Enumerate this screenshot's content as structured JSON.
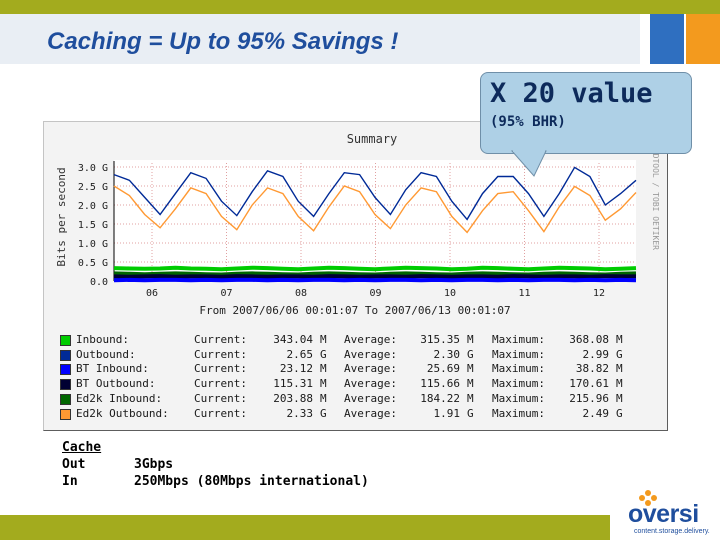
{
  "slide": {
    "title": "Caching = Up to 95% Savings !"
  },
  "callout": {
    "line1": "X 20 value",
    "line2": "(95% BHR)"
  },
  "info": {
    "header": "Cache",
    "out_label": "Out",
    "out_value": "3Gbps",
    "in_label": "In",
    "in_value": "250Mbps (80Mbps international)"
  },
  "logo": {
    "name": "oversi",
    "tagline": "content.storage.delivery."
  },
  "colors": {
    "accent_green": "#a3ab1e",
    "title_blue": "#1f4e9d",
    "square_orange": "#f39a1e",
    "square_blue": "#2f6fc0",
    "inbound": "#00cc00",
    "outbound": "#002a97",
    "bt_inbound": "#0000ff",
    "bt_outbound": "#000033",
    "ed2k_inbound": "#006600",
    "ed2k_outbound": "#ff9933"
  },
  "chart_data": {
    "type": "line",
    "title": "Summary",
    "ylabel": "Bits per second",
    "side_label": "RRDTOOL / TOBI OETIKER",
    "period": "From 2007/06/06 00:01:07 To 2007/06/13 00:01:07",
    "x_ticks": [
      "06",
      "07",
      "08",
      "09",
      "10",
      "11",
      "12"
    ],
    "y_ticks": [
      "0.0",
      "0.5 G",
      "1.0 G",
      "1.5 G",
      "2.0 G",
      "2.5 G",
      "3.0 G"
    ],
    "ylim": [
      0,
      3.0
    ],
    "y_unit": "Gbps",
    "series": [
      {
        "name": "Inbound:",
        "color": "#00cc00",
        "current": "343.04",
        "current_unit": "M",
        "average": "315.35",
        "average_unit": "M",
        "maximum": "368.08",
        "maximum_unit": "M",
        "values": [
          0.34,
          0.33,
          0.32,
          0.33,
          0.35,
          0.33,
          0.32,
          0.31,
          0.33,
          0.35,
          0.34,
          0.32,
          0.31,
          0.33,
          0.35,
          0.34,
          0.32,
          0.31,
          0.33,
          0.35,
          0.34,
          0.33,
          0.31,
          0.32,
          0.35,
          0.34,
          0.32,
          0.31,
          0.33,
          0.35,
          0.34,
          0.33,
          0.31,
          0.32,
          0.34
        ]
      },
      {
        "name": "Outbound:",
        "color": "#002a97",
        "current": "2.65",
        "current_unit": "G",
        "average": "2.30",
        "average_unit": "G",
        "maximum": "2.99",
        "maximum_unit": "G",
        "values": [
          2.8,
          2.65,
          2.2,
          1.75,
          2.3,
          2.85,
          2.7,
          2.1,
          1.72,
          2.35,
          2.9,
          2.75,
          2.1,
          1.7,
          2.3,
          2.85,
          2.8,
          2.2,
          1.75,
          2.4,
          2.85,
          2.75,
          2.1,
          1.62,
          2.3,
          2.75,
          2.75,
          2.3,
          1.7,
          2.3,
          2.99,
          2.75,
          2.0,
          2.3,
          2.65
        ]
      },
      {
        "name": "BT Inbound:",
        "color": "#0000ff",
        "current": "23.12",
        "current_unit": "M",
        "average": "25.69",
        "average_unit": "M",
        "maximum": "38.82",
        "maximum_unit": "M",
        "values": [
          0.02,
          0.03,
          0.02,
          0.03,
          0.03,
          0.02,
          0.03,
          0.02,
          0.03,
          0.03,
          0.02,
          0.03,
          0.02,
          0.03,
          0.03,
          0.02,
          0.03,
          0.02,
          0.03,
          0.03,
          0.02,
          0.03,
          0.02,
          0.03,
          0.03,
          0.02,
          0.03,
          0.02,
          0.03,
          0.03,
          0.02,
          0.03,
          0.02,
          0.03,
          0.02
        ]
      },
      {
        "name": "BT Outbound:",
        "color": "#000033",
        "current": "115.31",
        "current_unit": "M",
        "average": "115.66",
        "average_unit": "M",
        "maximum": "170.61",
        "maximum_unit": "M",
        "values": [
          0.12,
          0.11,
          0.12,
          0.13,
          0.11,
          0.12,
          0.12,
          0.11,
          0.13,
          0.12,
          0.11,
          0.12,
          0.12,
          0.11,
          0.13,
          0.12,
          0.11,
          0.12,
          0.12,
          0.11,
          0.13,
          0.12,
          0.11,
          0.12,
          0.12,
          0.11,
          0.13,
          0.12,
          0.11,
          0.12,
          0.12,
          0.11,
          0.13,
          0.12,
          0.12
        ]
      },
      {
        "name": "Ed2k Inbound:",
        "color": "#006600",
        "current": "203.88",
        "current_unit": "M",
        "average": "184.22",
        "average_unit": "M",
        "maximum": "215.96",
        "maximum_unit": "M",
        "values": [
          0.2,
          0.19,
          0.18,
          0.19,
          0.2,
          0.19,
          0.18,
          0.17,
          0.19,
          0.2,
          0.19,
          0.18,
          0.17,
          0.19,
          0.2,
          0.19,
          0.18,
          0.17,
          0.19,
          0.2,
          0.19,
          0.18,
          0.17,
          0.19,
          0.2,
          0.19,
          0.18,
          0.17,
          0.19,
          0.2,
          0.19,
          0.18,
          0.17,
          0.19,
          0.2
        ]
      },
      {
        "name": "Ed2k Outbound:",
        "color": "#ff9933",
        "current": "2.33",
        "current_unit": "G",
        "average": "1.91",
        "average_unit": "G",
        "maximum": "2.49",
        "maximum_unit": "G",
        "values": [
          2.5,
          2.25,
          1.75,
          1.4,
          1.9,
          2.45,
          2.3,
          1.7,
          1.35,
          2.0,
          2.45,
          2.3,
          1.7,
          1.32,
          1.95,
          2.5,
          2.35,
          1.75,
          1.38,
          2.0,
          2.45,
          2.35,
          1.7,
          1.28,
          1.85,
          2.3,
          2.35,
          1.85,
          1.3,
          1.95,
          2.49,
          2.25,
          1.6,
          1.9,
          2.33
        ]
      }
    ]
  }
}
